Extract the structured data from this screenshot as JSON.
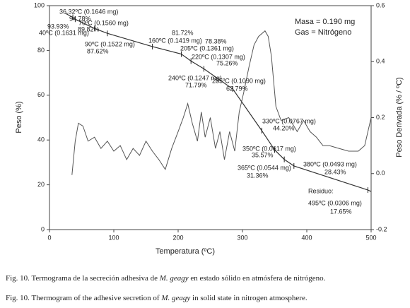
{
  "chart_data": {
    "type": "line",
    "xlabel": "Temperatura (ºC)",
    "ylabel": "Peso (%)",
    "y2label": "Peso Derivada (% / ºC)",
    "info": [
      "Masa = 0.190 mg",
      "Gas = Nitrógeno"
    ],
    "xlim": [
      0,
      500
    ],
    "xticks": [
      0,
      100,
      200,
      300,
      400,
      500
    ],
    "ylim": [
      0,
      100
    ],
    "yticks": [
      0,
      20,
      40,
      60,
      80,
      100
    ],
    "y2lim": [
      -0.2,
      0.6
    ],
    "y2ticks": [
      -0.2,
      {
        "value": 0,
        "label": "0.0"
      },
      0.2,
      0.4,
      0.6
    ],
    "series": [
      {
        "color": "#333333",
        "x": [
          25,
          36.32,
          40,
          70,
          90,
          160,
          205,
          220,
          240,
          285,
          330,
          350,
          365,
          380,
          495,
          500
        ],
        "values": [
          96.5,
          94.78,
          93.93,
          89.82,
          87.62,
          81.72,
          78.38,
          75.26,
          71.79,
          62.79,
          44.2,
          35.57,
          31.36,
          28.43,
          17.65,
          17.0
        ]
      },
      {
        "color": "#555555",
        "axis": "y2",
        "x": [
          35,
          40,
          45,
          52,
          60,
          70,
          80,
          90,
          100,
          110,
          120,
          130,
          140,
          150,
          160,
          170,
          180,
          190,
          200,
          208,
          215,
          222,
          230,
          236,
          242,
          250,
          258,
          265,
          272,
          280,
          288,
          295,
          302,
          310,
          318,
          325,
          335,
          340,
          345,
          352,
          360,
          372,
          385,
          395,
          405,
          415,
          425,
          435,
          450,
          465,
          480,
          490,
          500
        ],
        "values": [
          -0.005,
          0.116,
          0.18,
          0.17,
          0.116,
          0.13,
          0.09,
          0.116,
          0.08,
          0.1,
          0.05,
          0.09,
          0.065,
          0.116,
          0.08,
          0.05,
          0.015,
          0.09,
          0.15,
          0.2,
          0.25,
          0.18,
          0.116,
          0.22,
          0.13,
          0.2,
          0.09,
          0.15,
          0.05,
          0.15,
          0.08,
          0.22,
          0.29,
          0.38,
          0.46,
          0.49,
          0.51,
          0.49,
          0.42,
          0.24,
          0.19,
          0.2,
          0.15,
          0.19,
          0.15,
          0.13,
          0.1,
          0.1,
          0.09,
          0.08,
          0.08,
          0.1,
          0.2
        ]
      }
    ],
    "annotations": [
      {
        "label": "36.32ºC (0.1646 mg)",
        "percent": "94.78%"
      },
      {
        "label": "40ºC (0.1631 mg)",
        "percent": "93.93%"
      },
      {
        "label": "70ºC (0.1560 mg)",
        "percent": "89.82%"
      },
      {
        "label": "90ºC (0.1522 mg)",
        "percent": "87.62%"
      },
      {
        "label": "160ºC (0.1419 mg)",
        "percent": "81.72%"
      },
      {
        "label": "205ºC (0.1361 mg)",
        "percent": "78.38%"
      },
      {
        "label": "220ºC (0.1307 mg)",
        "percent": "75.26%"
      },
      {
        "label": "240ºC (0.1247 mg)",
        "percent": "71.79%"
      },
      {
        "label": "285ºC (0.1090 mg)",
        "percent": "62.79%"
      },
      {
        "label": "330ºC (0.0767 mg)",
        "percent": "44.20%"
      },
      {
        "label": "350ºC (0.0617 mg)",
        "percent": "35.57%"
      },
      {
        "label": "365ºC (0.0544 mg)",
        "percent": "31.36%"
      },
      {
        "label": "380ºC (0.0493 mg)",
        "percent": "28.43%"
      },
      {
        "label": "495ºC (0.0306 mg)",
        "percent": "17.65%",
        "title": "Residuo:"
      }
    ]
  },
  "captions": [
    [
      "Fig. 10. Termograma de la secreción adhesiva de ",
      "M. geagy",
      " en estado sólido en atmósfera de nitrógeno."
    ],
    [
      "Fig. 10. Thermogram of the adhesive secretion of ",
      "M. geagy",
      " in solid state in nitrogen atmosphere."
    ]
  ]
}
